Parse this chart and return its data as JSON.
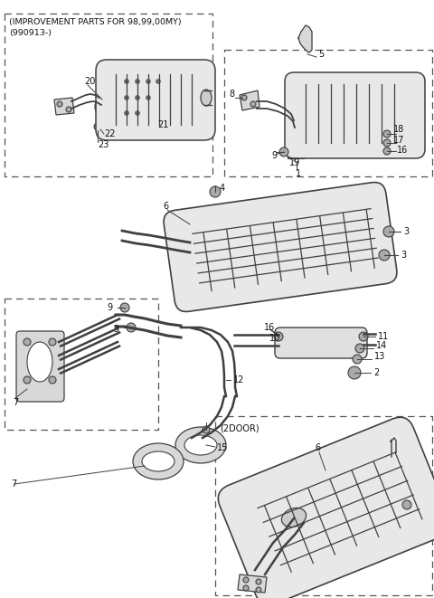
{
  "bg_color": "#ffffff",
  "line_color": "#404040",
  "text_color": "#111111",
  "fig_width": 4.8,
  "fig_height": 6.61,
  "dpi": 100,
  "header_text1": "(IMPROVEMENT PARTS FOR 98,99,00MY)",
  "header_text2": "(990913-)",
  "label_2door": "(2DOOR)",
  "font_size_label": 7.0,
  "font_size_header": 6.8
}
